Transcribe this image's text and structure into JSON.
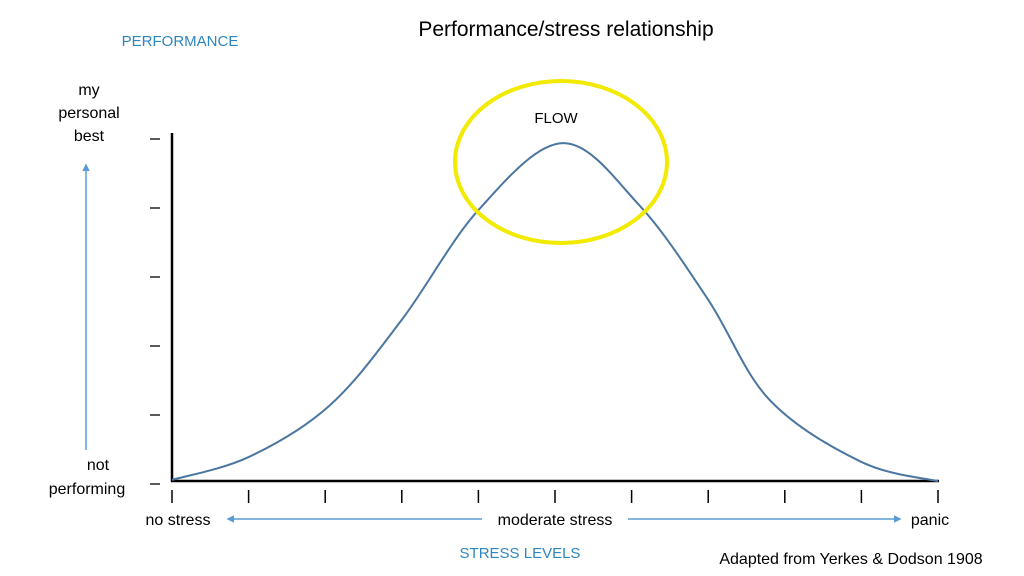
{
  "chart_data": {
    "type": "line",
    "title": "Performance/stress relationship",
    "ylabel": "PERFORMANCE",
    "xlabel": "STRESS LEVELS",
    "y_top_label": [
      "my",
      "personal",
      "best"
    ],
    "y_bottom_label": [
      "not",
      "performing"
    ],
    "x_labels": {
      "left": "no stress",
      "middle": "moderate stress",
      "right": "panic"
    },
    "xlim": [
      0,
      10
    ],
    "ylim": [
      0,
      5
    ],
    "x_ticks": [
      0,
      1,
      2,
      3,
      4,
      5,
      6,
      7,
      8,
      9,
      10
    ],
    "y_ticks": [
      0,
      1,
      2,
      3,
      4,
      5
    ],
    "grid": false,
    "series": [
      {
        "x": [
          0,
          1,
          2.06,
          3,
          4,
          5.1,
          6.1,
          7,
          7.8,
          9,
          10
        ],
        "y": [
          0.06,
          0.39,
          1.14,
          2.38,
          3.97,
          4.94,
          4.04,
          2.67,
          1.22,
          0.32,
          0.04
        ],
        "color": "#4a76a0"
      }
    ],
    "annotations": [
      {
        "text": "FLOW",
        "shape": "ellipse",
        "color": "#f2ea00",
        "center": [
          5.1,
          4.7
        ]
      }
    ],
    "source": "Adapted from Yerkes & Dodson 1908",
    "label_color": "#2e86c1",
    "arrow_color": "#5b9bd5"
  }
}
